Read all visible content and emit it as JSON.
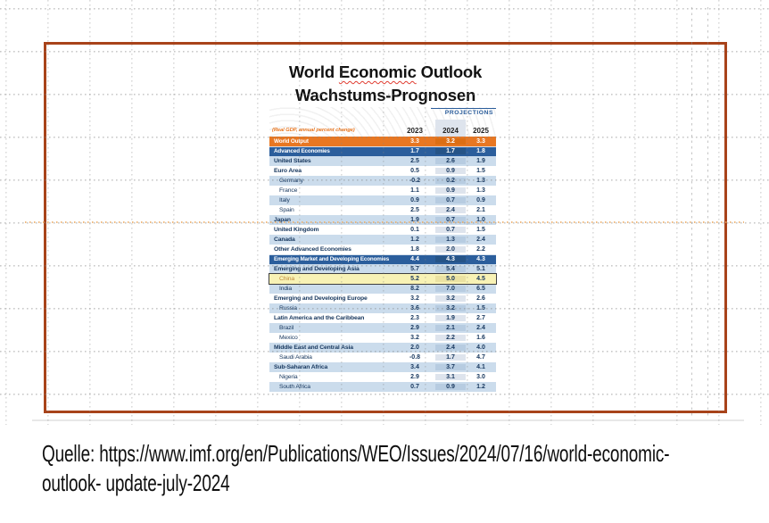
{
  "title": {
    "part1": "World ",
    "part2": "Economic",
    "part3": " Outlook",
    "line2": "Wachstums-Prognosen"
  },
  "table": {
    "subtitle": "(Real GDP, annual percent change)",
    "projections_label": "PROJECTIONS",
    "columns": [
      "2023",
      "2024",
      "2025"
    ],
    "rows": [
      {
        "label": "World Output",
        "style": "orange",
        "indent": false,
        "bold": true,
        "values": [
          "3.3",
          "3.2",
          "3.3"
        ]
      },
      {
        "label": "Advanced Economies",
        "style": "navy",
        "indent": false,
        "bold": true,
        "values": [
          "1.7",
          "1.7",
          "1.8"
        ]
      },
      {
        "label": "United States",
        "style": "lightblue",
        "indent": false,
        "bold": true,
        "values": [
          "2.5",
          "2.6",
          "1.9"
        ]
      },
      {
        "label": "Euro Area",
        "style": "white",
        "indent": false,
        "bold": true,
        "values": [
          "0.5",
          "0.9",
          "1.5"
        ]
      },
      {
        "label": "Germany",
        "style": "lightblue",
        "indent": true,
        "bold": false,
        "values": [
          "-0.2",
          "0.2",
          "1.3"
        ]
      },
      {
        "label": "France",
        "style": "white",
        "indent": true,
        "bold": false,
        "values": [
          "1.1",
          "0.9",
          "1.3"
        ]
      },
      {
        "label": "Italy",
        "style": "lightblue",
        "indent": true,
        "bold": false,
        "values": [
          "0.9",
          "0.7",
          "0.9"
        ]
      },
      {
        "label": "Spain",
        "style": "white",
        "indent": true,
        "bold": false,
        "values": [
          "2.5",
          "2.4",
          "2.1"
        ]
      },
      {
        "label": "Japan",
        "style": "lightblue",
        "indent": false,
        "bold": true,
        "values": [
          "1.9",
          "0.7",
          "1.0"
        ]
      },
      {
        "label": "United Kingdom",
        "style": "white",
        "indent": false,
        "bold": true,
        "values": [
          "0.1",
          "0.7",
          "1.5"
        ]
      },
      {
        "label": "Canada",
        "style": "lightblue",
        "indent": false,
        "bold": true,
        "values": [
          "1.2",
          "1.3",
          "2.4"
        ]
      },
      {
        "label": "Other Advanced Economies",
        "style": "white",
        "indent": false,
        "bold": true,
        "values": [
          "1.8",
          "2.0",
          "2.2"
        ]
      },
      {
        "label": "Emerging Market and Developing Economies",
        "style": "navy",
        "indent": false,
        "bold": true,
        "values": [
          "4.4",
          "4.3",
          "4.3"
        ]
      },
      {
        "label": "Emerging and Developing Asia",
        "style": "lightblue",
        "indent": false,
        "bold": true,
        "values": [
          "5.7",
          "5.4",
          "5.1"
        ]
      },
      {
        "label": "China",
        "style": "highlight",
        "indent": true,
        "bold": false,
        "values": [
          "5.2",
          "5.0",
          "4.5"
        ]
      },
      {
        "label": "India",
        "style": "lightblue",
        "indent": true,
        "bold": false,
        "values": [
          "8.2",
          "7.0",
          "6.5"
        ]
      },
      {
        "label": "Emerging and Developing Europe",
        "style": "white",
        "indent": false,
        "bold": true,
        "values": [
          "3.2",
          "3.2",
          "2.6"
        ]
      },
      {
        "label": "Russia",
        "style": "lightblue",
        "indent": true,
        "bold": false,
        "values": [
          "3.6",
          "3.2",
          "1.5"
        ]
      },
      {
        "label": "Latin America and the Caribbean",
        "style": "white",
        "indent": false,
        "bold": true,
        "values": [
          "2.3",
          "1.9",
          "2.7"
        ]
      },
      {
        "label": "Brazil",
        "style": "lightblue",
        "indent": true,
        "bold": false,
        "values": [
          "2.9",
          "2.1",
          "2.4"
        ]
      },
      {
        "label": "Mexico",
        "style": "white",
        "indent": true,
        "bold": false,
        "values": [
          "3.2",
          "2.2",
          "1.6"
        ]
      },
      {
        "label": "Middle East and Central Asia",
        "style": "lightblue",
        "indent": false,
        "bold": true,
        "values": [
          "2.0",
          "2.4",
          "4.0"
        ]
      },
      {
        "label": "Saudi Arabia",
        "style": "white",
        "indent": true,
        "bold": false,
        "values": [
          "-0.8",
          "1.7",
          "4.7"
        ]
      },
      {
        "label": "Sub-Saharan Africa",
        "style": "lightblue",
        "indent": false,
        "bold": true,
        "values": [
          "3.4",
          "3.7",
          "4.1"
        ]
      },
      {
        "label": "Nigeria",
        "style": "white",
        "indent": true,
        "bold": false,
        "values": [
          "2.9",
          "3.1",
          "3.0"
        ]
      },
      {
        "label": "South Africa",
        "style": "lightblue",
        "indent": true,
        "bold": false,
        "values": [
          "0.7",
          "0.9",
          "1.2"
        ]
      }
    ]
  },
  "source": {
    "line1": "Quelle: https://www.imf.org/en/Publications/WEO/Issues/2024/07/16/world-economic-",
    "line2": "outlook- update-july-2024"
  },
  "colors": {
    "frame_border": "#A8431A",
    "orange_row": "#E87722",
    "orange_row_band": "#DC6E14",
    "navy_row": "#2B5E9C",
    "navy_row_band": "#265487",
    "lightblue_row": "#CBDCEC",
    "lightblue_row_band": "#B7CCE1",
    "white_row": "#FFFFFF",
    "white_row_band": "#DEE4ED",
    "highlight_row": "#F8F2B5",
    "highlight_row_band": "#EBE2A2",
    "highlight_border": "#3F3F3F",
    "china_label": "#C08A3E",
    "value_text": "#17375E",
    "projections_text": "#2B5D9B",
    "subtitle_text": "#E87722",
    "year_text": "#222222",
    "title_text": "#111111",
    "misspell_underline": "#E03C31",
    "source_text": "#0F0F0F"
  }
}
